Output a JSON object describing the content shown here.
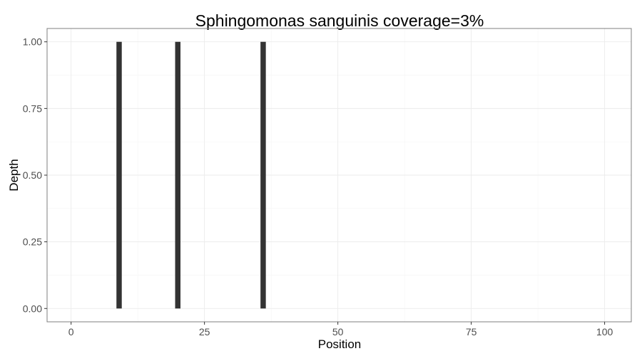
{
  "chart_data": {
    "type": "bar",
    "title": "Sphingomonas sanguinis coverage=3%",
    "xlabel": "Position",
    "ylabel": "Depth",
    "xlim": [
      -4.5,
      105
    ],
    "ylim": [
      -0.05,
      1.05
    ],
    "x_ticks": [
      0,
      25,
      50,
      75,
      100
    ],
    "y_ticks": [
      0,
      0.25,
      0.5,
      0.75,
      1
    ],
    "x_tick_labels": [
      "0",
      "25",
      "50",
      "75",
      "100"
    ],
    "y_tick_labels": [
      "0.00",
      "0.25",
      "0.50",
      "0.75",
      "1.00"
    ],
    "x_minor": [
      12.5,
      37.5,
      62.5,
      87.5
    ],
    "y_minor": [
      0.125,
      0.375,
      0.625,
      0.875
    ],
    "grid": true,
    "bar_width": 1,
    "points": [
      {
        "x": 9,
        "y": 1
      },
      {
        "x": 20,
        "y": 1
      },
      {
        "x": 36,
        "y": 1
      }
    ],
    "colors": {
      "bar": "#333333"
    }
  }
}
